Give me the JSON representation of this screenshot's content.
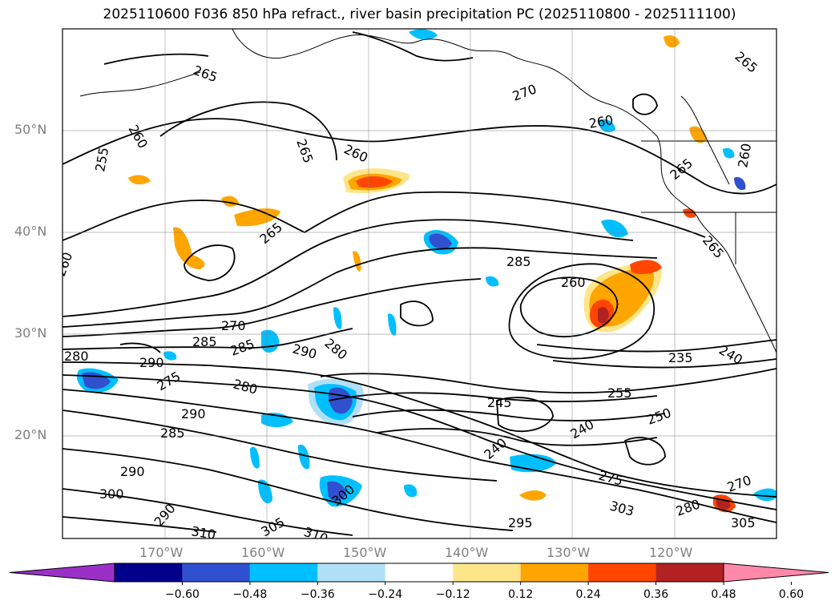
{
  "title": "2025110600 F036 850 hPa refract., river basin precipitation PC (2025110800 - 2025111100)",
  "lat_labels": [
    "50°N",
    "40°N",
    "30°N",
    "20°N"
  ],
  "lon_labels": [
    "170°W",
    "160°W",
    "150°W",
    "140°W",
    "130°W",
    "120°W"
  ],
  "colorbar": {
    "ticks": [
      "−0.60",
      "−0.48",
      "−0.36",
      "−0.24",
      "−0.12",
      "0.12",
      "0.24",
      "0.36",
      "0.48",
      "0.60"
    ],
    "colors": [
      "#9b30c8",
      "#00008b",
      "#3050d0",
      "#00bfff",
      "#b0e0f8",
      "#ffffff",
      "#fde68a",
      "#ffa500",
      "#ff4500",
      "#b22222",
      "#ff88aa"
    ]
  },
  "contour_labels": [
    "265",
    "260",
    "255",
    "265",
    "260",
    "270",
    "265",
    "260",
    "265",
    "285",
    "260",
    "260",
    "265",
    "270",
    "285",
    "285",
    "290",
    "280",
    "290",
    "280",
    "275",
    "280",
    "290",
    "285",
    "290",
    "300",
    "290",
    "310",
    "305",
    "310",
    "300",
    "295",
    "245",
    "240",
    "240",
    "255",
    "275",
    "303",
    "280",
    "270",
    "305",
    "250",
    "235",
    "240",
    "260",
    "265"
  ]
}
